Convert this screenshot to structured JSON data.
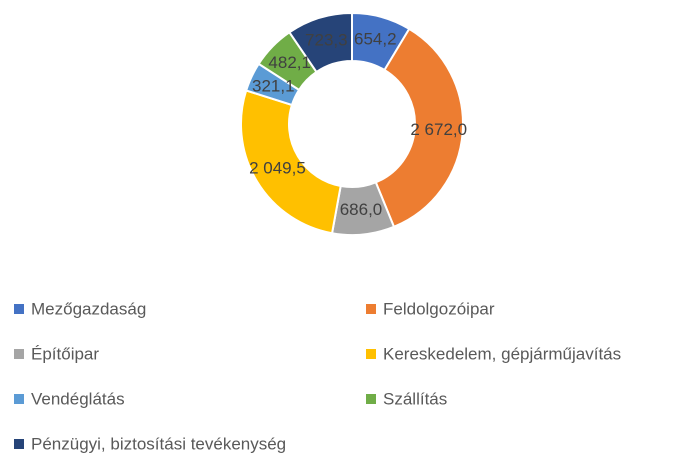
{
  "chart_data": {
    "type": "donut",
    "categories": [
      "Mezőgazdaság",
      "Feldolgozóipar",
      "Építőipar",
      "Kereskedelem, gépjárműjavítás",
      "Vendéglátás",
      "Szállítás",
      "Pénzügyi, biztosítási tevékenység"
    ],
    "values": [
      654.2,
      2672.0,
      686.0,
      2049.5,
      321.1,
      482.1,
      723.3
    ],
    "value_labels": [
      "654,2",
      "2 672,0",
      "686,0",
      "2 049,5",
      "321,1",
      "482,1",
      "723,3"
    ],
    "colors": [
      "#4472c4",
      "#ed7d31",
      "#a5a5a5",
      "#ffc000",
      "#5b9bd5",
      "#70ad47",
      "#264478"
    ],
    "legend": "bottom"
  }
}
